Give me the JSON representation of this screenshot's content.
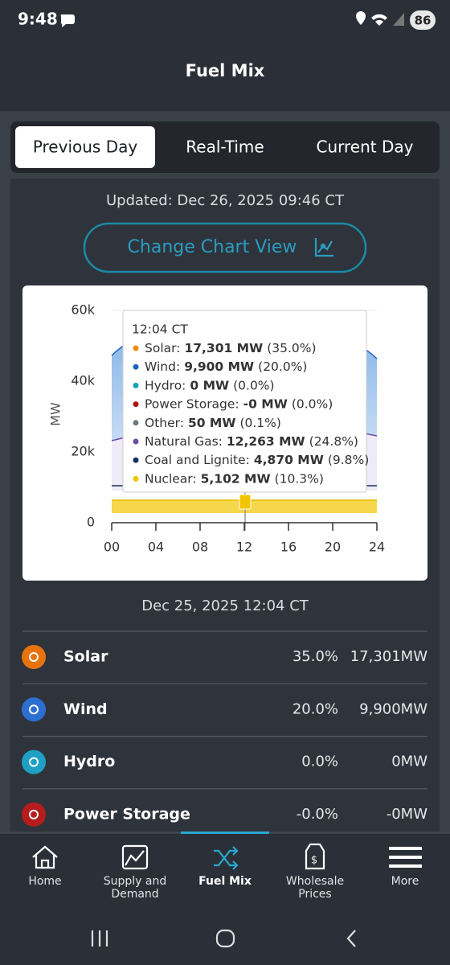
{
  "status_bar": {
    "time": "9:48",
    "battery": "86"
  },
  "header": {
    "title": "Fuel Mix"
  },
  "tabs": [
    "Previous Day",
    "Real-Time",
    "Current Day"
  ],
  "updated": "Updated: Dec 26, 2025 09:46 CT",
  "change_button": "Change Chart View",
  "chart": {
    "y_label": "MW",
    "ylim": [
      0,
      60000
    ],
    "yticks": [
      {
        "value": 0,
        "label": "0"
      },
      {
        "value": 20000,
        "label": "20k"
      },
      {
        "value": 40000,
        "label": "40k"
      },
      {
        "value": 60000,
        "label": "60k"
      }
    ],
    "xlim": [
      0,
      24
    ],
    "xticks": [
      {
        "value": 0,
        "label": "00"
      },
      {
        "value": 4,
        "label": "04"
      },
      {
        "value": 8,
        "label": "08"
      },
      {
        "value": 12,
        "label": "12"
      },
      {
        "value": 16,
        "label": "16"
      },
      {
        "value": 20,
        "label": "20"
      },
      {
        "value": 24,
        "label": "24"
      }
    ],
    "tooltip": {
      "time": "12:04 CT",
      "items": [
        {
          "name": "Solar:",
          "mw": "17,301 MW",
          "pct": "(35.0%)",
          "color": "#f08a00"
        },
        {
          "name": "Wind:",
          "mw": "9,900 MW",
          "pct": "(20.0%)",
          "color": "#1e62c0"
        },
        {
          "name": "Hydro:",
          "mw": "0 MW",
          "pct": "(0.0%)",
          "color": "#17a3b5"
        },
        {
          "name": "Power Storage:",
          "mw": "-0 MW",
          "pct": "(0.0%)",
          "color": "#b01515"
        },
        {
          "name": "Other:",
          "mw": "50 MW",
          "pct": "(0.1%)",
          "color": "#6f7780"
        },
        {
          "name": "Natural Gas:",
          "mw": "12,263 MW",
          "pct": "(24.8%)",
          "color": "#6a4ea6"
        },
        {
          "name": "Coal and Lignite:",
          "mw": "4,870 MW",
          "pct": "(9.8%)",
          "color": "#16305e"
        },
        {
          "name": "Nuclear:",
          "mw": "5,102 MW",
          "pct": "(10.3%)",
          "color": "#f2c500"
        }
      ]
    }
  },
  "timestamp": "Dec 25, 2025 12:04 CT",
  "fuel_list": [
    {
      "name": "Solar",
      "percent": "35.0%",
      "mw": "17,301MW",
      "color": "#e8730c"
    },
    {
      "name": "Wind",
      "percent": "20.0%",
      "mw": "9,900MW",
      "color": "#2c6fd1"
    },
    {
      "name": "Hydro",
      "percent": "0.0%",
      "mw": "0MW",
      "color": "#1f9fc4"
    },
    {
      "name": "Power Storage",
      "percent": "-0.0%",
      "mw": "-0MW",
      "color": "#b71c1c"
    }
  ],
  "nav": [
    {
      "label": "Home"
    },
    {
      "label": "Supply and Demand"
    },
    {
      "label": "Fuel Mix"
    },
    {
      "label": "Wholesale Prices"
    },
    {
      "label": "More"
    }
  ]
}
